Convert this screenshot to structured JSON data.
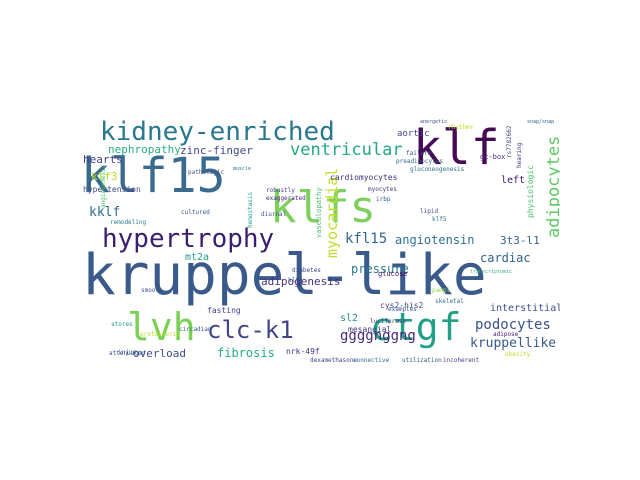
{
  "words": [
    {
      "text": "kruppel-like",
      "color": "#3b5a8c"
    },
    {
      "text": "klf15",
      "color": "#3a6b8f"
    },
    {
      "text": "klfs",
      "color": "#7fcf5c"
    },
    {
      "text": "klf",
      "color": "#440a54"
    },
    {
      "text": "ctgf",
      "color": "#23a085"
    },
    {
      "text": "lvh",
      "color": "#7ad151"
    },
    {
      "text": "kidney-enriched",
      "color": "#2a788e"
    },
    {
      "text": "hypertrophy",
      "color": "#3b1f6e"
    },
    {
      "text": "clc-k1",
      "color": "#414487"
    },
    {
      "text": "ventricular",
      "color": "#22a884"
    },
    {
      "text": "adipocytes",
      "color": "#5ec962"
    },
    {
      "text": "myocardial",
      "color": "#bddf26"
    },
    {
      "text": "kfl15",
      "color": "#31688e"
    },
    {
      "text": "angiotensin",
      "color": "#2c728e"
    },
    {
      "text": "3t3-l1",
      "color": "#355f8d"
    },
    {
      "text": "podocytes",
      "color": "#3b528b"
    },
    {
      "text": "ggggnggng",
      "color": "#482878"
    },
    {
      "text": "kruppellike",
      "color": "#38588c"
    },
    {
      "text": "nephropathy",
      "color": "#28ae80"
    },
    {
      "text": "zinc-finger",
      "color": "#3e4a89"
    },
    {
      "text": "klf3",
      "color": "#b5de2b"
    },
    {
      "text": "hearts",
      "color": "#433e85"
    },
    {
      "text": "kklf",
      "color": "#2f6c8e"
    },
    {
      "text": "cardiac",
      "color": "#33638d"
    },
    {
      "text": "pressure",
      "color": "#2a788e"
    },
    {
      "text": "mt2a",
      "color": "#1f9e89"
    },
    {
      "text": "fibrosis",
      "color": "#26ad81"
    },
    {
      "text": "overload",
      "color": "#3d4d8a"
    },
    {
      "text": "adipogenesis",
      "color": "#46327e"
    },
    {
      "text": "interstitial",
      "color": "#3c508b"
    },
    {
      "text": "left",
      "color": "#3b1c6c"
    },
    {
      "text": "aortic",
      "color": "#404588"
    },
    {
      "text": "physiologic",
      "color": "#4ac16d"
    },
    {
      "text": "cardiomyocytes",
      "color": "#46337f"
    },
    {
      "text": "hypertension",
      "color": "#3f4788"
    },
    {
      "text": "sl2",
      "color": "#20928c"
    },
    {
      "text": "mesangial",
      "color": "#453882"
    },
    {
      "text": "cys2-his2",
      "color": "#3e4989"
    },
    {
      "text": "nrk-49f",
      "color": "#46307e"
    },
    {
      "text": "fasting",
      "color": "#404387"
    },
    {
      "text": "gc-box",
      "color": "#4b2a75"
    },
    {
      "text": "rhythms",
      "color": "#c2df23"
    },
    {
      "text": "failure",
      "color": "#38598c"
    },
    {
      "text": "preadipocytes",
      "color": "#34618d"
    },
    {
      "text": "gluconeogenesis",
      "color": "#2d708e"
    },
    {
      "text": "myocytes",
      "color": "#433d84"
    },
    {
      "text": "irbp",
      "color": "#32648e"
    },
    {
      "text": "lipid",
      "color": "#3c4f8a"
    },
    {
      "text": "klf5",
      "color": "#2d718e"
    },
    {
      "text": "glucose",
      "color": "#471365"
    },
    {
      "text": "diurnal",
      "color": "#3a538b"
    },
    {
      "text": "cultured",
      "color": "#38598c"
    },
    {
      "text": "robustly",
      "color": "#414487"
    },
    {
      "text": "exaggerated",
      "color": "#472a7a"
    },
    {
      "text": "remodeling",
      "color": "#2b748e"
    },
    {
      "text": "attenuated",
      "color": "#3e4c8a"
    },
    {
      "text": "smooth",
      "color": "#3b528b"
    },
    {
      "text": "injury",
      "color": "#31688e"
    },
    {
      "text": "circadian",
      "color": "#365c8d"
    },
    {
      "text": "connective",
      "color": "#2c718e"
    },
    {
      "text": "utilization",
      "color": "#3a548c"
    },
    {
      "text": "incoherent",
      "color": "#424086"
    },
    {
      "text": "dexamethasone",
      "color": "#3e4989"
    },
    {
      "text": "pathologic",
      "color": "#3b528b"
    },
    {
      "text": "muscle",
      "color": "#2a778e"
    },
    {
      "text": "vasculopathy",
      "color": "#4ac16d"
    },
    {
      "text": "hemostasis",
      "color": "#1fa088"
    },
    {
      "text": "klf9",
      "color": "#3b528b"
    },
    {
      "text": "luciferase",
      "color": "#46317e"
    },
    {
      "text": "skeletal",
      "color": "#2d718e"
    },
    {
      "text": "diabetes",
      "color": "#3e4c8a"
    },
    {
      "text": "examples",
      "color": "#3b528b"
    },
    {
      "text": "pampl",
      "color": "#8fd744"
    },
    {
      "text": "stores",
      "color": "#1e9b8a"
    },
    {
      "text": "angiogenesis",
      "color": "#4ac16d"
    },
    {
      "text": "proteinuric",
      "color": "#b5de2b"
    },
    {
      "text": "adipose",
      "color": "#482173"
    },
    {
      "text": "obesity",
      "color": "#b5de2b"
    },
    {
      "text": "hearing",
      "color": "#472c7a"
    },
    {
      "text": "anergetic",
      "color": "#3a548c"
    },
    {
      "text": "snap/snap",
      "color": "#34618d"
    },
    {
      "text": "rs7782662",
      "color": "#3d4d8a"
    },
    {
      "text": "transcriptomic",
      "color": "#37b878"
    }
  ]
}
